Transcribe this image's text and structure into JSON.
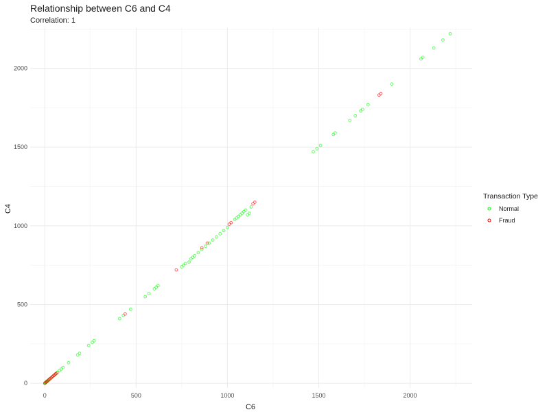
{
  "title": "Relationship between C6 and C4",
  "subtitle": "Correlation: 1",
  "chart_data": {
    "type": "scatter",
    "title": "Relationship between C6 and C4",
    "subtitle": "Correlation: 1",
    "xlabel": "C6",
    "ylabel": "C4",
    "xlim": [
      -80,
      2340
    ],
    "ylim": [
      -30,
      2260
    ],
    "x_ticks": [
      0,
      500,
      1000,
      1500,
      2000
    ],
    "y_ticks": [
      0,
      500,
      1000,
      1500,
      2000
    ],
    "grid": true,
    "legend": {
      "title": "Transaction Type",
      "placement": "right"
    },
    "series": [
      {
        "name": "Normal",
        "color": "#00ff00",
        "x": [
          0,
          2,
          4,
          6,
          8,
          10,
          12,
          15,
          20,
          25,
          30,
          40,
          50,
          60,
          70,
          80,
          90,
          100,
          130,
          180,
          190,
          240,
          260,
          270,
          410,
          430,
          470,
          550,
          570,
          600,
          610,
          620,
          750,
          760,
          770,
          790,
          800,
          810,
          820,
          840,
          860,
          880,
          900,
          920,
          940,
          960,
          980,
          1000,
          1040,
          1050,
          1060,
          1070,
          1080,
          1090,
          1100,
          1110,
          1120,
          1130,
          1470,
          1490,
          1510,
          1580,
          1590,
          1670,
          1700,
          1730,
          1740,
          1770,
          1900,
          2060,
          2070,
          2130,
          2180,
          2220
        ],
        "y": [
          0,
          2,
          4,
          6,
          8,
          10,
          12,
          15,
          20,
          25,
          30,
          40,
          50,
          60,
          70,
          80,
          90,
          100,
          130,
          180,
          190,
          240,
          260,
          270,
          410,
          430,
          470,
          550,
          570,
          600,
          610,
          620,
          740,
          750,
          760,
          770,
          790,
          800,
          810,
          830,
          850,
          870,
          890,
          910,
          930,
          950,
          970,
          990,
          1040,
          1050,
          1060,
          1070,
          1080,
          1090,
          1100,
          1070,
          1080,
          1120,
          1470,
          1490,
          1510,
          1580,
          1590,
          1670,
          1700,
          1730,
          1740,
          1770,
          1900,
          2060,
          2070,
          2130,
          2180,
          2220
        ]
      },
      {
        "name": "Fraud",
        "color": "#ff0000",
        "x": [
          0,
          5,
          10,
          15,
          20,
          25,
          30,
          35,
          40,
          45,
          50,
          55,
          60,
          65,
          440,
          720,
          860,
          890,
          1010,
          1020,
          1140,
          1150,
          1830,
          1840
        ],
        "y": [
          0,
          5,
          10,
          15,
          20,
          25,
          30,
          35,
          40,
          45,
          50,
          55,
          60,
          65,
          440,
          720,
          860,
          890,
          1010,
          1020,
          1140,
          1150,
          1830,
          1840
        ]
      }
    ]
  }
}
